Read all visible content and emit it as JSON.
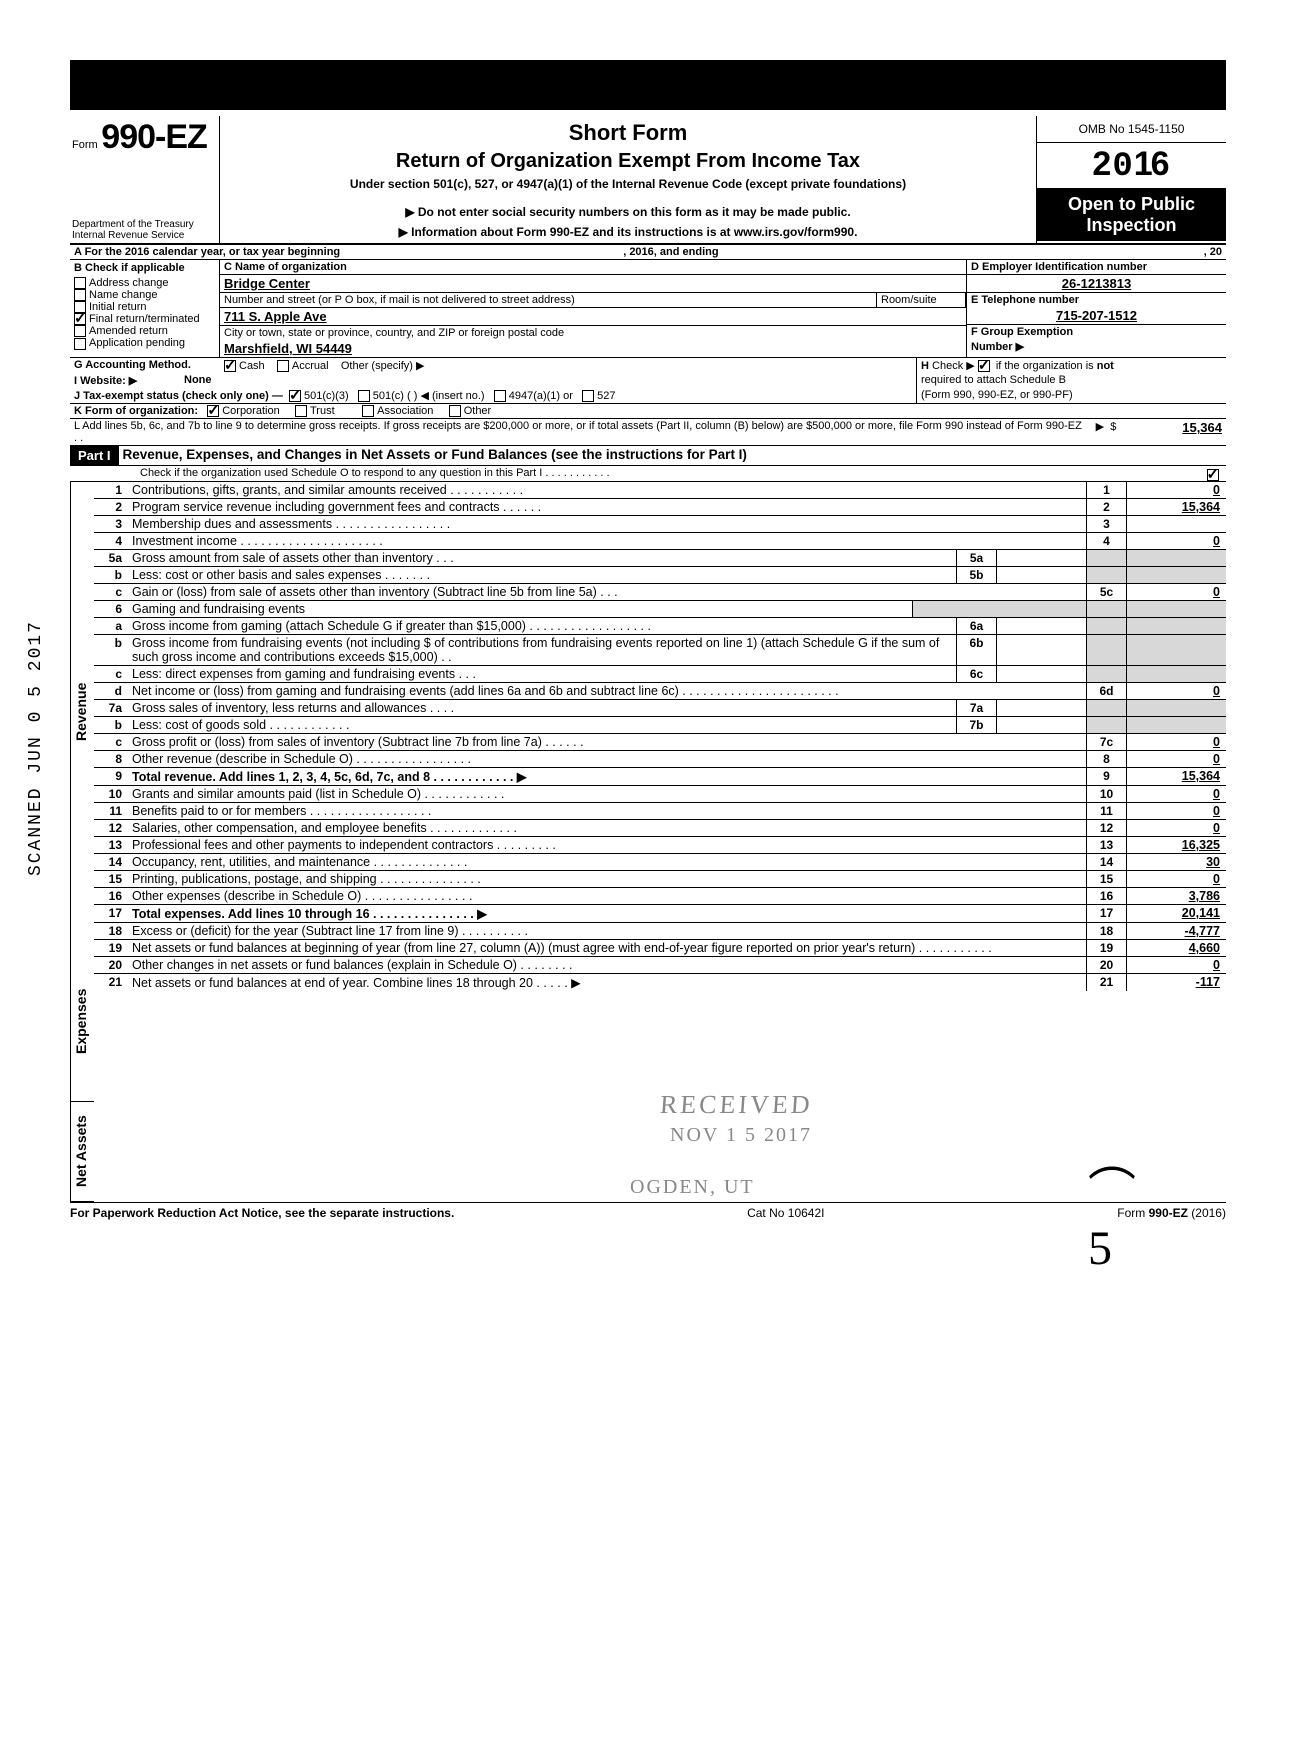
{
  "header": {
    "form_prefix": "Form",
    "form_number": "990-EZ",
    "short_form": "Short Form",
    "title": "Return of Organization Exempt From Income Tax",
    "subtitle": "Under section 501(c), 527, or 4947(a)(1) of the Internal Revenue Code (except private foundations)",
    "arrow1": "▶ Do not enter social security numbers on this form as it may be made public.",
    "arrow2": "▶ Information about Form 990-EZ and its instructions is at www.irs.gov/form990.",
    "dept": "Department of the Treasury\nInternal Revenue Service",
    "omb": "OMB No 1545-1150",
    "year": "2016",
    "open_public": "Open to Public Inspection"
  },
  "sectionA": {
    "a_label": "A  For the 2016 calendar year, or tax year beginning",
    "a_year_txt": ", 2016, and ending",
    "a_end": ", 20",
    "b_label": "B  Check if applicable",
    "b_opts": [
      "Address change",
      "Name change",
      "Initial return",
      "Final return/terminated",
      "Amended return",
      "Application pending"
    ],
    "b_checked_idx": 3,
    "c_label": "C  Name of organization",
    "c_name": "Bridge Center",
    "c_addr_label": "Number and street (or P O  box, if mail is not delivered to street address)",
    "c_room": "Room/suite",
    "c_addr": "711 S. Apple Ave",
    "c_city_label": "City or town, state or province, country, and ZIP or foreign postal code",
    "c_city": "Marshfield, WI  54449",
    "d_label": "D  Employer Identification number",
    "d_ein": "26-1213813",
    "e_label": "E  Telephone number",
    "e_phone": "715-207-1512",
    "f_label": "F  Group Exemption",
    "f_num": "Number  ▶"
  },
  "gk": {
    "g": "G  Accounting Method.",
    "g_cash": "Cash",
    "g_accr": "Accrual",
    "g_other": "Other (specify) ▶",
    "h": "H  Check  ▶        if the organization is not required to attach Schedule B (Form 990, 990-EZ, or 990-PF)",
    "i": "I   Website: ▶",
    "i_val": "None",
    "j": "J  Tax-exempt status (check only one) —",
    "j1": "501(c)(3)",
    "j2": "501(c) (        ) ◀ (insert no.)",
    "j3": "4947(a)(1) or",
    "j4": "527",
    "k": "K  Form of organization:",
    "k1": "Corporation",
    "k2": "Trust",
    "k3": "Association",
    "k4": "Other",
    "l": "L  Add lines 5b, 6c, and 7b to line 9 to determine gross receipts. If gross receipts are $200,000 or more, or if total assets (Part II, column (B) below) are $500,000 or more, file Form 990 instead of Form 990-EZ . .",
    "l_amt": "15,364"
  },
  "part1": {
    "bar": "Part I",
    "title": "Revenue, Expenses, and Changes in Net Assets or Fund Balances (see the instructions for Part I)",
    "check_line": "Check if the organization used Schedule O to respond to any question in this Part I . . . . . . . . . . ."
  },
  "sections": {
    "rev": "Revenue",
    "exp": "Expenses",
    "na": "Net Assets"
  },
  "lines": [
    {
      "n": "1",
      "t": "Contributions, gifts, grants, and similar amounts received .     .    .    .    .    .    .    .    .    .    .",
      "b": "1",
      "a": "0"
    },
    {
      "n": "2",
      "t": "Program service revenue including government fees and contracts      .    .        .    .    .    .",
      "b": "2",
      "a": "15,364"
    },
    {
      "n": "3",
      "t": "Membership dues and assessments .    .    .    .    .    .    .    .    .    .    .    .    .    .    .    .    .",
      "b": "3",
      "a": ""
    },
    {
      "n": "4",
      "t": "Investment income     .    .    .    .    .    .    .    .    .    .    .    .    .    .    .    .    .    .    .    .    .",
      "b": "4",
      "a": "0"
    },
    {
      "n": "5a",
      "t": "Gross amount from sale of assets other than inventory     .    .    .",
      "sub": "5a"
    },
    {
      "n": "b",
      "t": "Less: cost or other basis and sales expenses .    .    .    .    .    .    .",
      "sub": "5b"
    },
    {
      "n": "c",
      "t": "Gain or (loss) from sale of assets other than inventory (Subtract line 5b from line 5a) .    .    .",
      "b": "5c",
      "a": "0"
    },
    {
      "n": "6",
      "t": "Gaming and fundraising events"
    },
    {
      "n": "a",
      "t": "Gross income from gaming (attach Schedule G if greater than $15,000) .    .    .    .    .    .    .    .    .    .    .    .    .    .    .    .    .    .",
      "sub": "6a"
    },
    {
      "n": "b",
      "t": "Gross income from fundraising events (not including  $                         of contributions from fundraising events reported on line 1) (attach Schedule G if the sum of such gross income and contributions exceeds $15,000) .  .",
      "sub": "6b"
    },
    {
      "n": "c",
      "t": "Less: direct expenses from gaming and fundraising events    .    .    .",
      "sub": "6c"
    },
    {
      "n": "d",
      "t": "Net income or (loss) from gaming and fundraising events (add lines 6a and 6b and subtract line 6c)        .    .    .    .    .    .    .    .    .    .    .    .    .    .    .    .    .    .    .        .    .    .    .",
      "b": "6d",
      "a": "0"
    },
    {
      "n": "7a",
      "t": "Gross sales of inventory, less returns and allowances .    .    .    .",
      "sub": "7a"
    },
    {
      "n": "b",
      "t": "Less: cost of goods sold      .    .    .    .    .    .    .    .    .    .    .    .",
      "sub": "7b"
    },
    {
      "n": "c",
      "t": "Gross profit or (loss) from sales of inventory (Subtract line 7b from line 7a)    .    .    .    .    .    .",
      "b": "7c",
      "a": "0"
    },
    {
      "n": "8",
      "t": "Other revenue (describe in Schedule O) .    .    .    .    .    .    .    .    .    .    .    .    .    .    .    .    .",
      "b": "8",
      "a": "0"
    },
    {
      "n": "9",
      "t": "Total revenue. Add lines 1, 2, 3, 4, 5c, 6d, 7c, and 8   .    .    .    .    .    .    .    .    .    .    .    .  ▶",
      "b": "9",
      "a": "15,364",
      "bold": true
    },
    {
      "n": "10",
      "t": "Grants and similar amounts paid (list in Schedule O)    .    .    .    .    .    .    .    .    .    .    .    .",
      "b": "10",
      "a": "0"
    },
    {
      "n": "11",
      "t": "Benefits paid to or for members    .    .    .    .    .    .    .    .    .    .    .    .    .    .    .    .    .    .",
      "b": "11",
      "a": "0"
    },
    {
      "n": "12",
      "t": "Salaries, other compensation, and employee benefits  .    .    .    .    .    .    .    .    .    .    .    .    .",
      "b": "12",
      "a": "0"
    },
    {
      "n": "13",
      "t": "Professional fees and other payments to independent contractors    .    .    .    .    .    .    .    .    .",
      "b": "13",
      "a": "16,325"
    },
    {
      "n": "14",
      "t": "Occupancy, rent, utilities, and maintenance     .    .    .    .       .    .    .    .    .    .    .    .    .    .",
      "b": "14",
      "a": "30"
    },
    {
      "n": "15",
      "t": "Printing, publications, postage, and shipping .    .    .    .    .    .    .    .    .    .    .    .    .    .    .",
      "b": "15",
      "a": "0"
    },
    {
      "n": "16",
      "t": "Other expenses (describe in Schedule O)  .    .    .    .    .    .    .    .    .    .    .    .    .    .    .    .",
      "b": "16",
      "a": "3,786"
    },
    {
      "n": "17",
      "t": "Total expenses. Add lines 10 through 16   .    .    .    .    .    .    .    .    .    .    .    .    .    .    . ▶",
      "b": "17",
      "a": "20,141",
      "bold": true
    },
    {
      "n": "18",
      "t": "Excess or (deficit) for the year (Subtract line 17 from line 9)    .    .    .    .    .    .    .    .    .    .",
      "b": "18",
      "a": "-4,777"
    },
    {
      "n": "19",
      "t": "Net assets or fund balances at beginning of year (from line 27, column (A)) (must agree with end-of-year figure reported on prior year's return)     .    .    .    .       .    .    .    .    .    .    .",
      "b": "19",
      "a": "4,660"
    },
    {
      "n": "20",
      "t": "Other changes in net assets or fund balances (explain in Schedule O) .    .    .    .    .    .    .    .",
      "b": "20",
      "a": "0"
    },
    {
      "n": "21",
      "t": "Net assets or fund balances at end of year. Combine lines 18 through 20    .    .    .    .    .   ▶",
      "b": "21",
      "a": "-117"
    }
  ],
  "footer": {
    "left": "For Paperwork Reduction Act Notice, see the separate instructions.",
    "mid": "Cat No  10642I",
    "right": "Form 990-EZ (2016)"
  },
  "stamps": {
    "received": "RECEIVED",
    "date": "NOV 1 5 2017",
    "ogden": "OGDEN, UT",
    "scanned": "SCANNED JUN 0 5 2017"
  }
}
